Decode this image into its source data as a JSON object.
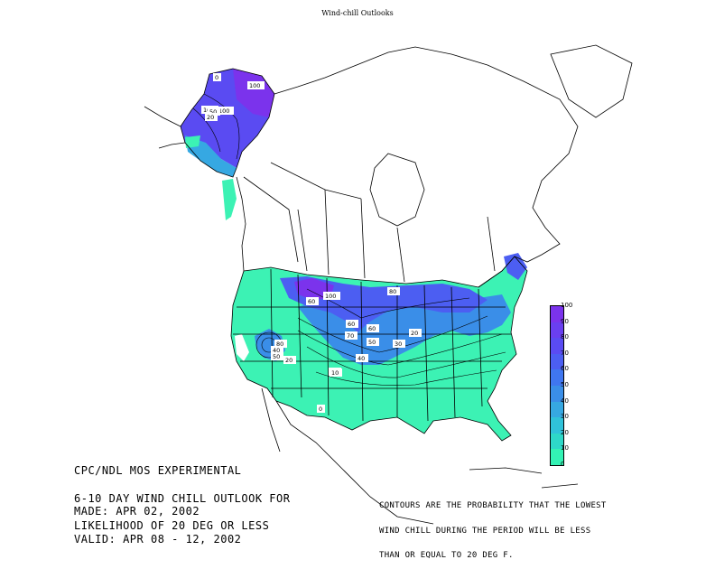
{
  "title": "Wind-chill Outlooks",
  "info_lines": [
    "CPC/NDL MOS EXPERIMENTAL",
    "6-10 DAY WIND CHILL OUTLOOK FOR",
    "LIKELIHOOD OF 20 DEG OR LESS"
  ],
  "made": "MADE: APR 02, 2002",
  "valid": "VALID: APR 08 - 12, 2002",
  "note_lines": [
    "CONTOURS ARE THE PROBABILITY THAT THE LOWEST",
    "WIND CHILL DURING THE PERIOD WILL BE LESS",
    "THAN OR EQUAL TO 20 DEG F."
  ],
  "legend": {
    "ticks": [
      "100",
      "90",
      "80",
      "70",
      "60",
      "50",
      "40",
      "30",
      "20",
      "10",
      "0"
    ],
    "colors": [
      "#7b33ec",
      "#6a3ff0",
      "#5a4bf2",
      "#4c5ef2",
      "#3f76f0",
      "#3a8ee8",
      "#36a8e2",
      "#30c2da",
      "#2ed8c8",
      "#33f2b4"
    ]
  },
  "contour_labels": [
    "100",
    "100",
    "100",
    "100",
    "60",
    "80",
    "60",
    "60",
    "70",
    "50",
    "40",
    "30",
    "20",
    "20",
    "40",
    "50",
    "30",
    "10",
    "0",
    "80",
    "50",
    "20",
    "0"
  ],
  "colors": {
    "base_fill": "#3cf2b4",
    "mid_fill": "#3aa6e6",
    "high_fill": "#5a4bf2",
    "top_fill": "#7b33ec",
    "line": "#000000"
  }
}
